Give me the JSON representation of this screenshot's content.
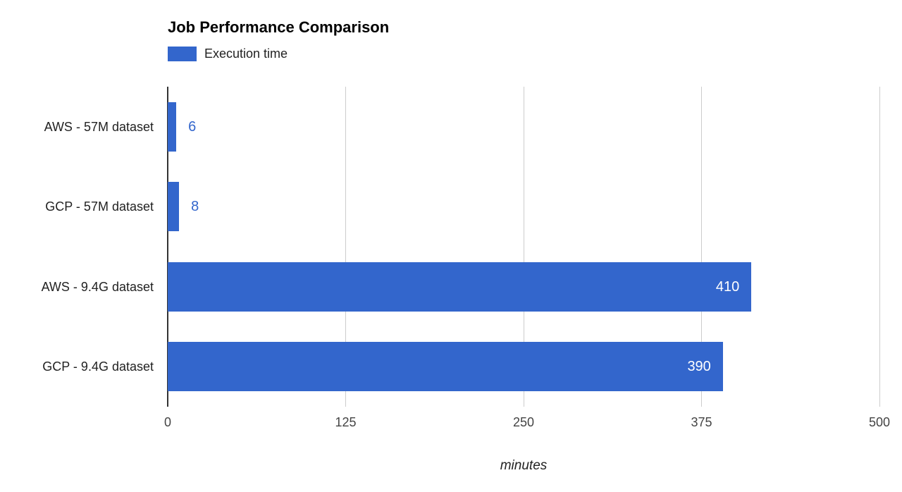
{
  "chart_data": {
    "type": "bar",
    "orientation": "horizontal",
    "title": "Job Performance Comparison",
    "series_label": "Execution time",
    "legend_position": "top-left",
    "categories": [
      "AWS - 57M dataset",
      "GCP - 57M dataset",
      "AWS - 9.4G dataset",
      "GCP - 9.4G dataset"
    ],
    "values": [
      6,
      8,
      410,
      390
    ],
    "xlabel": "minutes",
    "ylabel": "",
    "xlim": [
      0,
      500
    ],
    "xticks": [
      0,
      125,
      250,
      375,
      500
    ],
    "grid": true,
    "colors": {
      "bar": "#3366cc",
      "annotation_outside": "#3366cc",
      "annotation_inside": "#ffffff",
      "gridline": "#cccccc",
      "axis_line": "#333333",
      "tick_label": "#444444",
      "category_label": "#222222",
      "title": "#000000"
    }
  }
}
